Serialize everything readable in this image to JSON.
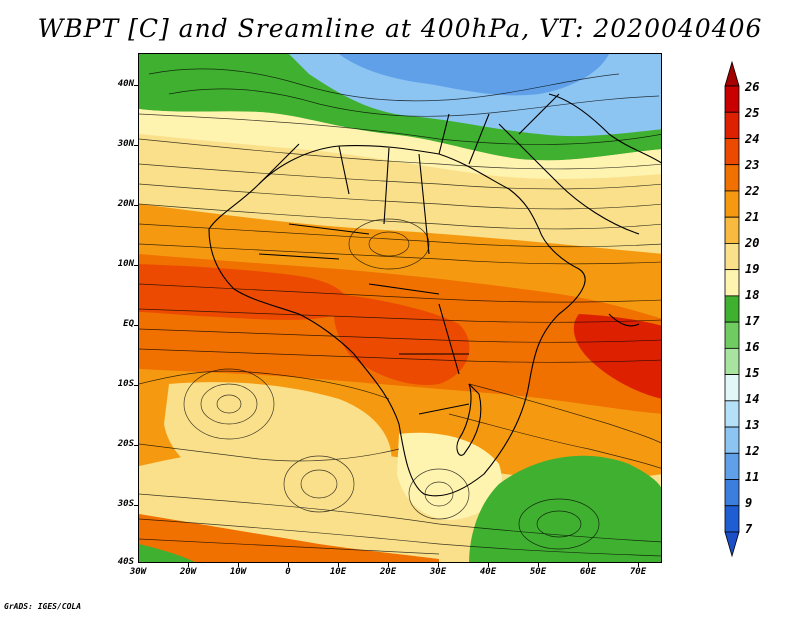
{
  "title": "WBPT [C] and Sreamline at 400hPa, VT: 2020040406",
  "credit": "GrADS: IGES/COLA",
  "map": {
    "lat_labels": [
      "40N",
      "30N",
      "20N",
      "10N",
      "EQ",
      "10S",
      "20S",
      "30S",
      "40S"
    ],
    "lon_labels": [
      "30W",
      "20W",
      "10W",
      "0",
      "10E",
      "20E",
      "30E",
      "40E",
      "50E",
      "60E",
      "70E"
    ],
    "lat_range": [
      -40,
      45
    ],
    "lon_range": [
      -30,
      75
    ]
  },
  "colorbar": {
    "labels": [
      "26",
      "25",
      "24",
      "23",
      "22",
      "21",
      "20",
      "19",
      "18",
      "17",
      "16",
      "15",
      "14",
      "13",
      "12",
      "11",
      "9",
      "7"
    ],
    "colors": [
      "#a50000",
      "#c80000",
      "#dc2000",
      "#eb4a00",
      "#f07000",
      "#f59a10",
      "#f8bb40",
      "#fae08a",
      "#fff3b0",
      "#40b030",
      "#70cc60",
      "#a8e4a0",
      "#e2f8f8",
      "#b4e0f8",
      "#8cc4f2",
      "#60a0e8",
      "#3c7ede",
      "#1e5ed2",
      "#1a4fc8"
    ]
  }
}
